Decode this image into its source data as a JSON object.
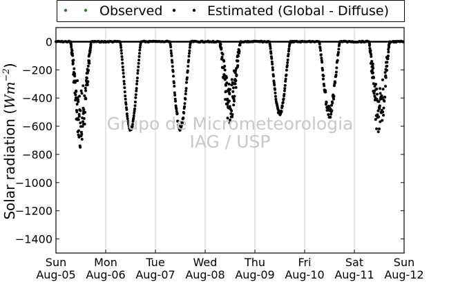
{
  "chart_data": {
    "type": "scatter",
    "ylabel": "Solar radiation (Wm⁻²)",
    "ylabel_plain": "Solar radiation (",
    "ylabel_unit": "Wm",
    "ylabel_exp": "−2",
    "ylabel_close": ")",
    "ylim": [
      -1500,
      100
    ],
    "yticks": [
      0,
      -200,
      -400,
      -600,
      -800,
      -1000,
      -1200,
      -1400
    ],
    "xlim": [
      0,
      7
    ],
    "xticks": [
      {
        "x": 0,
        "day": "Sun",
        "date": "Aug-05"
      },
      {
        "x": 1,
        "day": "Mon",
        "date": "Aug-06"
      },
      {
        "x": 2,
        "day": "Tue",
        "date": "Aug-07"
      },
      {
        "x": 3,
        "day": "Wed",
        "date": "Aug-08"
      },
      {
        "x": 4,
        "day": "Thu",
        "date": "Aug-09"
      },
      {
        "x": 5,
        "day": "Fri",
        "date": "Aug-10"
      },
      {
        "x": 6,
        "day": "Sat",
        "date": "Aug-11"
      },
      {
        "x": 7,
        "day": "Sun",
        "date": "Aug-12"
      }
    ],
    "grid": "vertical",
    "legend_position": "top",
    "series": [
      {
        "name": "Observed",
        "color": "#1f8b1f",
        "marker": "dot",
        "values": [
          [
            0,
            0
          ],
          [
            7,
            0
          ]
        ]
      },
      {
        "name": "Estimated (Global - Diffuse)",
        "color": "#000000",
        "marker": "dot",
        "days": [
          {
            "day": 0,
            "peak": -600,
            "noise": 160
          },
          {
            "day": 1,
            "peak": -625,
            "noise": 10
          },
          {
            "day": 2,
            "peak": -610,
            "noise": 25
          },
          {
            "day": 3,
            "peak": -440,
            "noise": 150
          },
          {
            "day": 4,
            "peak": -510,
            "noise": 15
          },
          {
            "day": 5,
            "peak": -500,
            "noise": 45
          },
          {
            "day": 6,
            "peak": -540,
            "noise": 150
          }
        ]
      }
    ]
  },
  "legend": {
    "observed_label": "Observed",
    "estimated_label": "Estimated (Global - Diffuse)"
  },
  "watermark": {
    "line1": "Grupo de Micrometeorologia",
    "line2": "IAG / USP"
  }
}
